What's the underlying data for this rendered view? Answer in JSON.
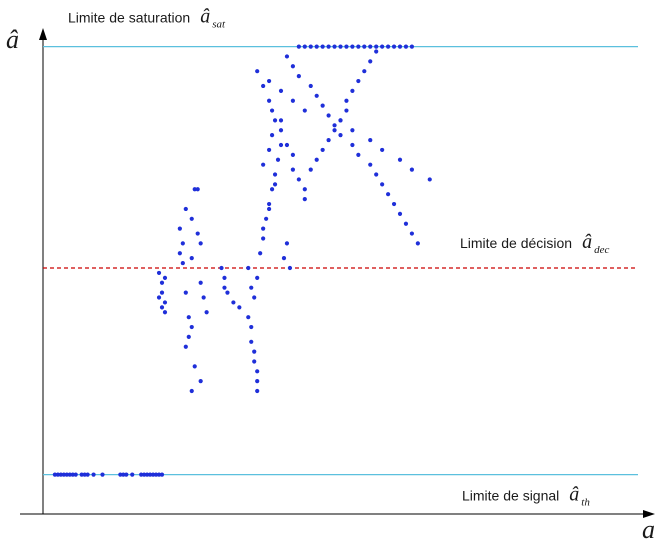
{
  "chart_data": {
    "type": "scatter",
    "title": "",
    "x_axis": {
      "symbol": "a"
    },
    "y_axis": {
      "symbol": "â"
    },
    "grid": false,
    "legend": "none",
    "thresholds": [
      {
        "id": "saturation",
        "label": "Limite de saturation",
        "symbol": "â",
        "subscript": "sat",
        "y": 0.95,
        "color": "#5bc0de",
        "style": "solid"
      },
      {
        "id": "decision",
        "label": "Limite de décision",
        "symbol": "â",
        "subscript": "dec",
        "y": 0.5,
        "color": "#cc0000",
        "style": "dashed"
      },
      {
        "id": "signal",
        "label": "Limite de signal",
        "symbol": "â",
        "subscript": "th",
        "y": 0.08,
        "color": "#5bc0de",
        "style": "solid"
      }
    ],
    "xlim": [
      0,
      1
    ],
    "ylim": [
      0,
      1
    ],
    "series": [
      {
        "color": "#1f2fd9",
        "x": [
          0.02,
          0.025,
          0.03,
          0.035,
          0.04,
          0.045,
          0.05,
          0.055,
          0.065,
          0.07,
          0.075,
          0.085,
          0.1,
          0.13,
          0.135,
          0.14,
          0.15,
          0.165,
          0.17,
          0.175,
          0.18,
          0.185,
          0.19,
          0.195,
          0.2,
          0.195,
          0.2,
          0.195,
          0.2,
          0.205,
          0.205,
          0.2,
          0.205,
          0.23,
          0.235,
          0.23,
          0.235,
          0.24,
          0.24,
          0.245,
          0.245,
          0.25,
          0.25,
          0.255,
          0.26,
          0.26,
          0.265,
          0.265,
          0.27,
          0.275,
          0.25,
          0.24,
          0.255,
          0.265,
          0.25,
          0.3,
          0.305,
          0.305,
          0.31,
          0.32,
          0.33,
          0.345,
          0.35,
          0.35,
          0.355,
          0.355,
          0.36,
          0.36,
          0.36,
          0.345,
          0.35,
          0.355,
          0.36,
          0.365,
          0.37,
          0.375,
          0.38,
          0.385,
          0.39,
          0.395,
          0.4,
          0.405,
          0.41,
          0.415,
          0.37,
          0.38,
          0.39,
          0.37,
          0.38,
          0.385,
          0.39,
          0.36,
          0.37,
          0.38,
          0.385,
          0.4,
          0.4,
          0.41,
          0.42,
          0.42,
          0.43,
          0.44,
          0.44,
          0.45,
          0.46,
          0.47,
          0.48,
          0.49,
          0.5,
          0.51,
          0.51,
          0.52,
          0.53,
          0.54,
          0.55,
          0.56,
          0.43,
          0.44,
          0.45,
          0.46,
          0.47,
          0.48,
          0.49,
          0.5,
          0.51,
          0.52,
          0.53,
          0.54,
          0.55,
          0.56,
          0.57,
          0.58,
          0.59,
          0.6,
          0.61,
          0.62,
          0.41,
          0.42,
          0.43,
          0.45,
          0.46,
          0.47,
          0.48,
          0.49,
          0.5,
          0.52,
          0.53,
          0.55,
          0.56,
          0.57,
          0.58,
          0.59,
          0.6,
          0.61,
          0.62,
          0.63,
          0.38,
          0.4,
          0.42,
          0.44,
          0.5,
          0.52,
          0.55,
          0.57,
          0.6,
          0.62,
          0.65
        ],
        "y": [
          0.08,
          0.08,
          0.08,
          0.08,
          0.08,
          0.08,
          0.08,
          0.08,
          0.08,
          0.08,
          0.08,
          0.08,
          0.08,
          0.08,
          0.08,
          0.08,
          0.08,
          0.08,
          0.08,
          0.08,
          0.08,
          0.08,
          0.08,
          0.08,
          0.08,
          0.49,
          0.47,
          0.44,
          0.42,
          0.41,
          0.48,
          0.45,
          0.43,
          0.58,
          0.55,
          0.53,
          0.51,
          0.62,
          0.45,
          0.4,
          0.36,
          0.6,
          0.52,
          0.66,
          0.66,
          0.57,
          0.55,
          0.47,
          0.44,
          0.41,
          0.38,
          0.34,
          0.3,
          0.27,
          0.25,
          0.5,
          0.48,
          0.46,
          0.45,
          0.43,
          0.42,
          0.4,
          0.38,
          0.35,
          0.33,
          0.31,
          0.29,
          0.27,
          0.25,
          0.5,
          0.46,
          0.44,
          0.48,
          0.53,
          0.56,
          0.6,
          0.63,
          0.66,
          0.69,
          0.72,
          0.75,
          0.52,
          0.55,
          0.5,
          0.58,
          0.62,
          0.67,
          0.71,
          0.74,
          0.77,
          0.8,
          0.9,
          0.87,
          0.84,
          0.82,
          0.8,
          0.78,
          0.75,
          0.73,
          0.7,
          0.68,
          0.66,
          0.64,
          0.7,
          0.72,
          0.74,
          0.76,
          0.78,
          0.8,
          0.82,
          0.84,
          0.86,
          0.88,
          0.9,
          0.92,
          0.94,
          0.95,
          0.95,
          0.95,
          0.95,
          0.95,
          0.95,
          0.95,
          0.95,
          0.95,
          0.95,
          0.95,
          0.95,
          0.95,
          0.95,
          0.95,
          0.95,
          0.95,
          0.95,
          0.95,
          0.95,
          0.93,
          0.91,
          0.89,
          0.87,
          0.85,
          0.83,
          0.81,
          0.79,
          0.77,
          0.75,
          0.73,
          0.71,
          0.69,
          0.67,
          0.65,
          0.63,
          0.61,
          0.59,
          0.57,
          0.55,
          0.88,
          0.86,
          0.84,
          0.82,
          0.8,
          0.78,
          0.76,
          0.74,
          0.72,
          0.7,
          0.68
        ]
      }
    ]
  }
}
